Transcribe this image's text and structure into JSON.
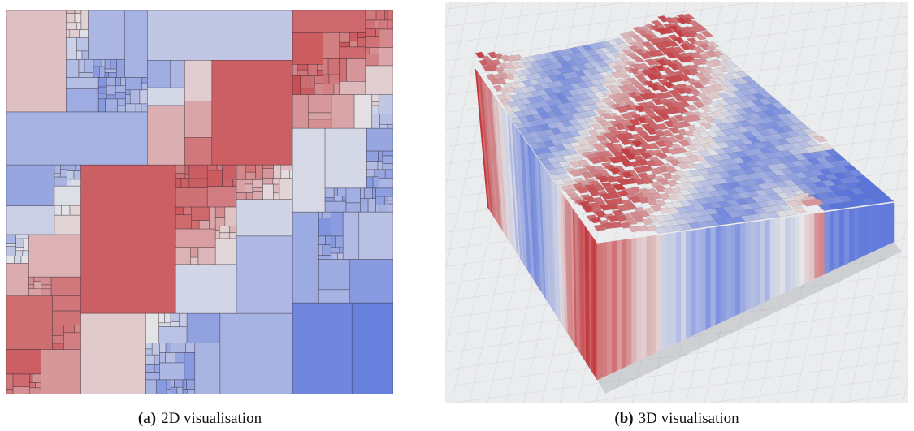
{
  "figure": {
    "panels": [
      {
        "label": "(a)",
        "caption": "2D visualisation"
      },
      {
        "label": "(b)",
        "caption": "3D visualisation"
      }
    ]
  }
}
